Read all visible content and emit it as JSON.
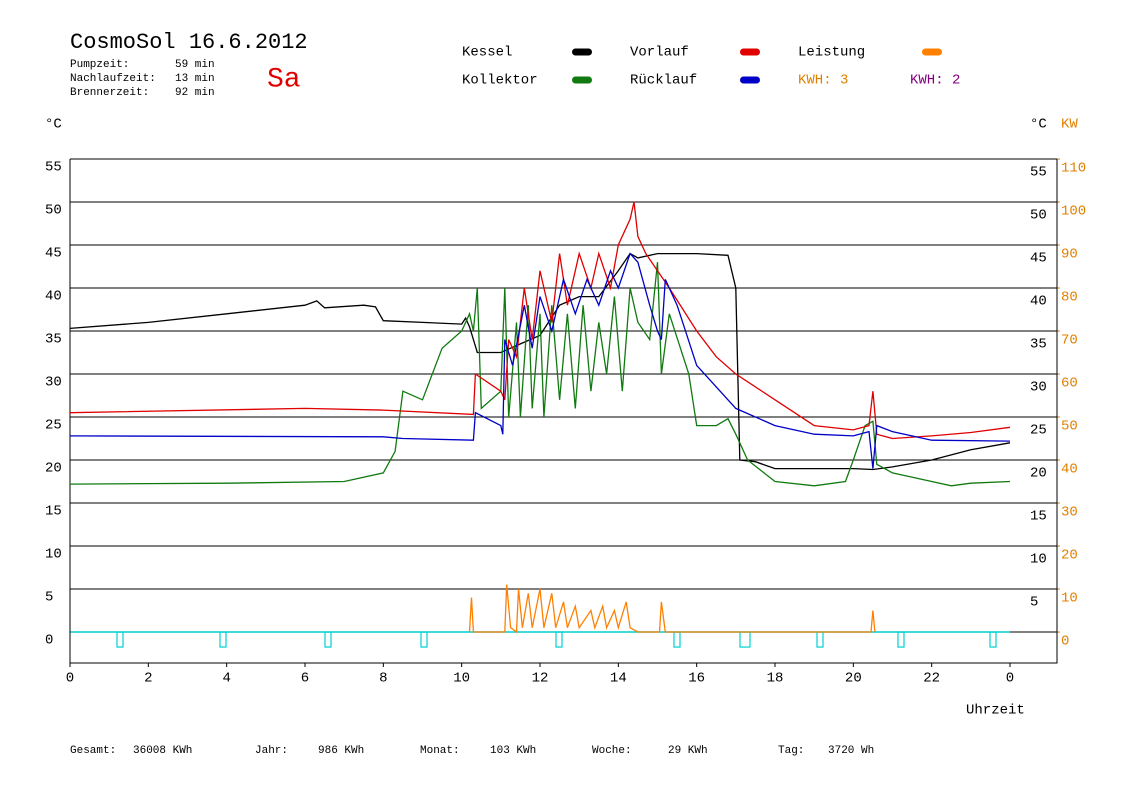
{
  "chart_data": {
    "type": "line",
    "title": "CosmoSol 16.6.2012",
    "day": "Sa",
    "info": [
      {
        "label": "Pumpzeit:",
        "value": "59 min"
      },
      {
        "label": "Nachlaufzeit:",
        "value": "13 min"
      },
      {
        "label": "Brennerzeit:",
        "value": "92 min"
      }
    ],
    "kwh": [
      {
        "label": "KWH: 3",
        "color": "#e08000"
      },
      {
        "label": "KWH: 2",
        "color": "#800080"
      }
    ],
    "y_unit": "°C",
    "y2_unit": "KW",
    "x_label": "Uhrzeit",
    "xlim": [
      0,
      25.2
    ],
    "xticks": [
      0,
      2,
      4,
      6,
      8,
      10,
      12,
      14,
      16,
      18,
      20,
      22,
      {
        "value": 24,
        "label": "0"
      }
    ],
    "ylim": [
      -3.6,
      55
    ],
    "yticks": [
      0,
      5,
      10,
      15,
      20,
      25,
      30,
      35,
      40,
      45,
      50,
      55
    ],
    "y2lim": [
      -7.2,
      110
    ],
    "y2ticks": [
      0,
      10,
      20,
      30,
      40,
      50,
      60,
      70,
      80,
      90,
      100,
      110
    ],
    "grid": true,
    "series": [
      {
        "name": "Kessel",
        "color": "#000000",
        "x": [
          0,
          2,
          4,
          6,
          6.3,
          6.5,
          7.5,
          7.8,
          8,
          9,
          10,
          10.1,
          10.2,
          10.4,
          11,
          11.5,
          12,
          12.5,
          13,
          13.5,
          14,
          14.3,
          14.5,
          15,
          16,
          16.8,
          17,
          17.1,
          17.5,
          18,
          20,
          20.5,
          21,
          22,
          23,
          24
        ],
        "values": [
          35.3,
          36,
          37,
          38,
          38.5,
          37.7,
          38,
          37.8,
          36.2,
          36,
          35.8,
          36.5,
          35.5,
          32.5,
          32.5,
          33.5,
          34.5,
          38,
          39,
          39,
          42,
          44,
          43.5,
          44,
          44,
          43.8,
          40,
          20,
          19.8,
          19,
          19,
          18.9,
          19.2,
          20,
          21.2,
          22
        ]
      },
      {
        "name": "Kollektor",
        "color": "#107a10",
        "x": [
          0,
          4,
          7,
          8,
          8.3,
          8.5,
          9,
          9.5,
          10,
          10.2,
          10.3,
          10.4,
          10.5,
          11,
          11.1,
          11.2,
          11.4,
          11.5,
          11.7,
          11.8,
          12,
          12.1,
          12.3,
          12.5,
          12.7,
          12.9,
          13.1,
          13.3,
          13.5,
          13.7,
          13.9,
          14.1,
          14.3,
          14.5,
          14.8,
          15,
          15.1,
          15.3,
          15.8,
          16,
          16.5,
          16.8,
          17,
          17.3,
          18,
          19,
          19.8,
          20,
          20.3,
          20.5,
          20.6,
          21,
          22,
          22.5,
          23,
          24
        ],
        "values": [
          17.2,
          17.3,
          17.5,
          18.5,
          21,
          28,
          27,
          33,
          35,
          37,
          35,
          40,
          26,
          28,
          40,
          25,
          36,
          25,
          38,
          26,
          37,
          25,
          38,
          27,
          37,
          26,
          38,
          28,
          36,
          30,
          39,
          28,
          40,
          36,
          34,
          43,
          30,
          37,
          30,
          24,
          24,
          24.8,
          23,
          20,
          17.5,
          17,
          17.5,
          20,
          24,
          24.5,
          19.5,
          18.5,
          17.5,
          17,
          17.3,
          17.5
        ]
      },
      {
        "name": "Vorlauf",
        "color": "#e00000",
        "x": [
          0,
          6,
          8,
          10.3,
          10.35,
          11,
          11.1,
          11.2,
          11.4,
          11.6,
          11.8,
          12,
          12.3,
          12.5,
          12.7,
          13,
          13.3,
          13.5,
          13.8,
          14,
          14.3,
          14.4,
          14.5,
          14.7,
          15,
          15.3,
          16,
          16.5,
          17,
          18,
          19,
          20,
          20.4,
          20.5,
          20.6,
          21,
          22,
          23,
          24
        ],
        "values": [
          25.5,
          26,
          25.8,
          25.3,
          30,
          28,
          27,
          34,
          32,
          40,
          34,
          42,
          36,
          44,
          38,
          44,
          40,
          44,
          40,
          45,
          48,
          50,
          46,
          44,
          42,
          40,
          35,
          32,
          30,
          27,
          24,
          23.5,
          24,
          28,
          23,
          22.5,
          22.8,
          23.2,
          23.8
        ]
      },
      {
        "name": "Rücklauf",
        "color": "#0000c8",
        "x": [
          0,
          8,
          8.5,
          10.3,
          10.35,
          11,
          11.05,
          11.1,
          11.3,
          11.6,
          11.8,
          12,
          12.3,
          12.6,
          12.9,
          13.2,
          13.5,
          13.8,
          14,
          14.3,
          14.5,
          14.8,
          15,
          15.1,
          15.2,
          15.5,
          16,
          17,
          18,
          19,
          20,
          20.4,
          20.5,
          20.6,
          21,
          22,
          24
        ],
        "values": [
          22.8,
          22.7,
          22.5,
          22.3,
          25.5,
          24,
          23,
          34,
          31,
          38,
          33,
          39,
          35,
          41,
          37,
          41,
          38,
          42,
          40,
          44,
          43,
          38,
          35,
          34,
          41,
          38,
          31,
          26,
          24,
          23,
          22.8,
          23.3,
          19,
          24,
          23.3,
          22.3,
          22.2
        ]
      },
      {
        "name": "Leistung",
        "color": "#ff8000",
        "axis": "y2",
        "x": [
          10.2,
          10.25,
          10.3,
          11.1,
          11.15,
          11.25,
          11.4,
          11.45,
          11.55,
          11.7,
          11.8,
          12,
          12.1,
          12.3,
          12.4,
          12.6,
          12.7,
          12.9,
          13,
          13.3,
          13.4,
          13.6,
          13.7,
          13.9,
          14,
          14.2,
          14.3,
          14.5,
          15.05,
          15.1,
          15.2,
          20.45,
          20.5,
          20.55
        ],
        "values": [
          0,
          8,
          0,
          0,
          11,
          1,
          0,
          10,
          1,
          9,
          1,
          10,
          1,
          9,
          1,
          7,
          1,
          6,
          1,
          5,
          1,
          6,
          1,
          5,
          1,
          7,
          1,
          0,
          0,
          7,
          0,
          0,
          5,
          0
        ]
      }
    ],
    "footer": [
      {
        "label": "Gesamt:",
        "value": "36008 KWh"
      },
      {
        "label": "Jahr:",
        "value": "986 KWh"
      },
      {
        "label": "Monat:",
        "value": "103 KWh"
      },
      {
        "label": "Woche:",
        "value": "29 KWh"
      },
      {
        "label": "Tag:",
        "value": "3720 Wh"
      }
    ]
  }
}
